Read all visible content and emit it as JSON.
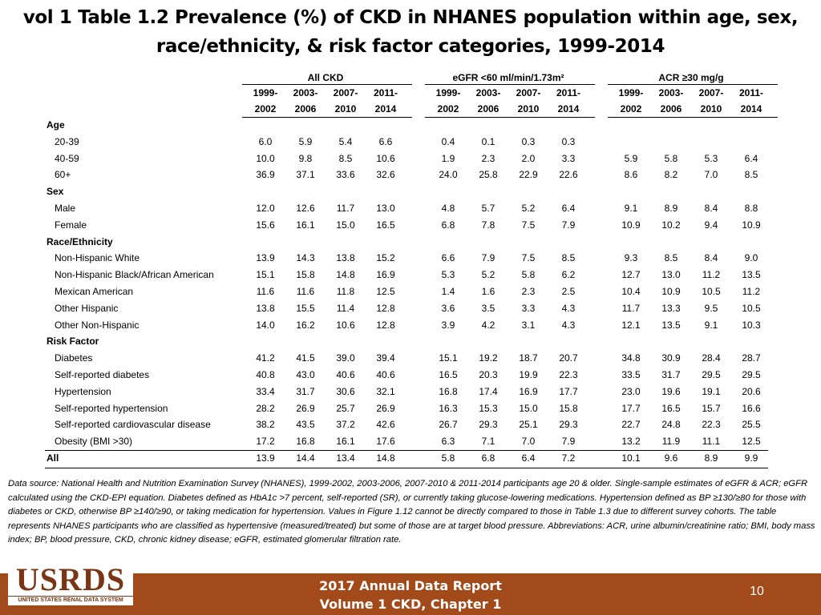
{
  "title_line1": "vol 1 Table 1.2 Prevalence (%) of CKD in NHANES population within age, sex,",
  "title_line2": "race/ethnicity, & risk factor categories, 1999-2014",
  "table": {
    "group_headers": [
      "All CKD",
      "eGFR <60 ml/min/1.73m²",
      "ACR ≥30 mg/g"
    ],
    "year_line1": [
      "1999-",
      "2003-",
      "2007-",
      "2011-"
    ],
    "year_line2": [
      "2002",
      "2006",
      "2010",
      "2014"
    ],
    "rows": [
      {
        "label": "Age",
        "type": "section",
        "values": []
      },
      {
        "label": "20-39",
        "type": "data",
        "values": [
          "6.0",
          "5.9",
          "5.4",
          "6.6",
          "0.4",
          "0.1",
          "0.3",
          "0.3",
          "",
          "",
          "",
          ""
        ]
      },
      {
        "label": "40-59",
        "type": "data",
        "values": [
          "10.0",
          "9.8",
          "8.5",
          "10.6",
          "1.9",
          "2.3",
          "2.0",
          "3.3",
          "5.9",
          "5.8",
          "5.3",
          "6.4"
        ]
      },
      {
        "label": "60+",
        "type": "data",
        "values": [
          "36.9",
          "37.1",
          "33.6",
          "32.6",
          "24.0",
          "25.8",
          "22.9",
          "22.6",
          "8.6",
          "8.2",
          "7.0",
          "8.5"
        ]
      },
      {
        "label": "Sex",
        "type": "section",
        "values": []
      },
      {
        "label": "Male",
        "type": "data",
        "values": [
          "12.0",
          "12.6",
          "11.7",
          "13.0",
          "4.8",
          "5.7",
          "5.2",
          "6.4",
          "9.1",
          "8.9",
          "8.4",
          "8.8"
        ]
      },
      {
        "label": "Female",
        "type": "data",
        "values": [
          "15.6",
          "16.1",
          "15.0",
          "16.5",
          "6.8",
          "7.8",
          "7.5",
          "7.9",
          "10.9",
          "10.2",
          "9.4",
          "10.9"
        ]
      },
      {
        "label": "Race/Ethnicity",
        "type": "section",
        "values": []
      },
      {
        "label": "Non-Hispanic White",
        "type": "data",
        "values": [
          "13.9",
          "14.3",
          "13.8",
          "15.2",
          "6.6",
          "7.9",
          "7.5",
          "8.5",
          "9.3",
          "8.5",
          "8.4",
          "9.0"
        ]
      },
      {
        "label": "Non-Hispanic Black/African American",
        "type": "data",
        "values": [
          "15.1",
          "15.8",
          "14.8",
          "16.9",
          "5.3",
          "5.2",
          "5.8",
          "6.2",
          "12.7",
          "13.0",
          "11.2",
          "13.5"
        ]
      },
      {
        "label": "Mexican American",
        "type": "data",
        "values": [
          "11.6",
          "11.6",
          "11.8",
          "12.5",
          "1.4",
          "1.6",
          "2.3",
          "2.5",
          "10.4",
          "10.9",
          "10.5",
          "11.2"
        ]
      },
      {
        "label": "Other Hispanic",
        "type": "data",
        "values": [
          "13.8",
          "15.5",
          "11.4",
          "12.8",
          "3.6",
          "3.5",
          "3.3",
          "4.3",
          "11.7",
          "13.3",
          "9.5",
          "10.5"
        ]
      },
      {
        "label": "Other Non-Hispanic",
        "type": "data",
        "values": [
          "14.0",
          "16.2",
          "10.6",
          "12.8",
          "3.9",
          "4.2",
          "3.1",
          "4.3",
          "12.1",
          "13.5",
          "9.1",
          "10.3"
        ]
      },
      {
        "label": "Risk Factor",
        "type": "section",
        "values": []
      },
      {
        "label": "Diabetes",
        "type": "data",
        "values": [
          "41.2",
          "41.5",
          "39.0",
          "39.4",
          "15.1",
          "19.2",
          "18.7",
          "20.7",
          "34.8",
          "30.9",
          "28.4",
          "28.7"
        ]
      },
      {
        "label": "Self-reported diabetes",
        "type": "data",
        "values": [
          "40.8",
          "43.0",
          "40.6",
          "40.6",
          "16.5",
          "20.3",
          "19.9",
          "22.3",
          "33.5",
          "31.7",
          "29.5",
          "29.5"
        ]
      },
      {
        "label": "Hypertension",
        "type": "data",
        "values": [
          "33.4",
          "31.7",
          "30.6",
          "32.1",
          "16.8",
          "17.4",
          "16.9",
          "17.7",
          "23.0",
          "19.6",
          "19.1",
          "20.6"
        ]
      },
      {
        "label": "Self-reported hypertension",
        "type": "data",
        "values": [
          "28.2",
          "26.9",
          "25.7",
          "26.9",
          "16.3",
          "15.3",
          "15.0",
          "15.8",
          "17.7",
          "16.5",
          "15.7",
          "16.6"
        ]
      },
      {
        "label": "Self-reported cardiovascular disease",
        "type": "data",
        "values": [
          "38.2",
          "43.5",
          "37.2",
          "42.6",
          "26.7",
          "29.3",
          "25.1",
          "29.3",
          "22.7",
          "24.8",
          "22.3",
          "25.5"
        ]
      },
      {
        "label": "Obesity (BMI >30)",
        "type": "data",
        "values": [
          "17.2",
          "16.8",
          "16.1",
          "17.6",
          "6.3",
          "7.1",
          "7.0",
          "7.9",
          "13.2",
          "11.9",
          "11.1",
          "12.5"
        ]
      },
      {
        "label": "All",
        "type": "total",
        "values": [
          "13.9",
          "14.4",
          "13.4",
          "14.8",
          "5.8",
          "6.8",
          "6.4",
          "7.2",
          "10.1",
          "9.6",
          "8.9",
          "9.9"
        ]
      }
    ]
  },
  "footnote": "Data source: National Health and Nutrition Examination Survey (NHANES), 1999-2002, 2003-2006, 2007-2010 & 2011-2014 participants age 20 & older. Single-sample estimates of eGFR & ACR; eGFR calculated using the CKD-EPI equation. Diabetes defined as HbA1c >7 percent, self-reported (SR), or currently taking glucose-lowering medications. Hypertension defined as BP ≥130/≥80 for those with diabetes or CKD, otherwise BP ≥140/≥90, or taking medication for hypertension. Values in Figure 1.12 cannot be directly compared to those in Table 1.3 due to different survey cohorts. The table represents NHANES participants who are classified as hypertensive (measured/treated) but some of those are at target blood pressure. Abbreviations: ACR, urine albumin/creatinine ratio; BMI, body mass index; BP, blood pressure, CKD, chronic kidney disease; eGFR, estimated glomerular filtration rate.",
  "logo": {
    "text": "USRDS",
    "subtext": "UNITED STATES RENAL DATA SYSTEM"
  },
  "footer": {
    "line1": "2017 Annual Data Report",
    "line2": "Volume 1 CKD, Chapter 1",
    "page": "10"
  },
  "colors": {
    "footer_bg": "#a34a1a",
    "logo": "#7a3514"
  }
}
